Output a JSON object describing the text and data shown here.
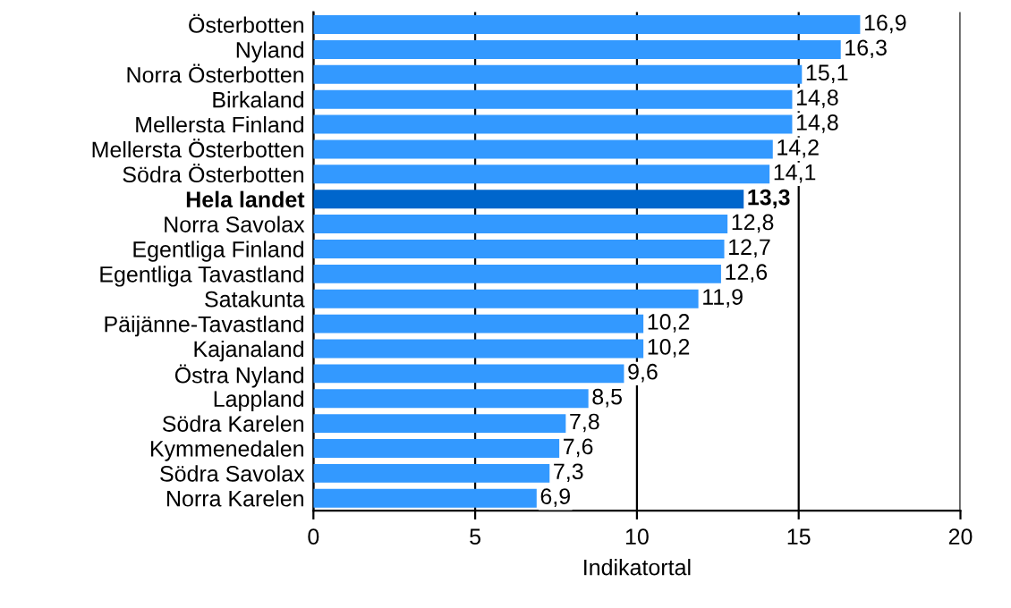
{
  "chart_data": {
    "type": "bar",
    "orientation": "horizontal",
    "xlabel": "Indikatortal",
    "categories": [
      "Österbotten",
      "Nyland",
      "Norra Österbotten",
      "Birkaland",
      "Mellersta Finland",
      "Mellersta Österbotten",
      "Södra Österbotten",
      "Hela landet",
      "Norra Savolax",
      "Egentliga Finland",
      "Egentliga Tavastland",
      "Satakunta",
      "Päijänne-Tavastland",
      "Kajanaland",
      "Östra Nyland",
      "Lappland",
      "Södra Karelen",
      "Kymmenedalen",
      "Södra Savolax",
      "Norra Karelen"
    ],
    "values": [
      16.9,
      16.3,
      15.1,
      14.8,
      14.8,
      14.2,
      14.1,
      13.3,
      12.8,
      12.7,
      12.6,
      11.9,
      10.2,
      10.2,
      9.6,
      8.5,
      7.8,
      7.6,
      7.3,
      6.9
    ],
    "value_labels": [
      "16,9",
      "16,3",
      "15,1",
      "14,8",
      "14,8",
      "14,2",
      "14,1",
      "13,3",
      "12,8",
      "12,7",
      "12,6",
      "11,9",
      "10,2",
      "10,2",
      "9,6",
      "8,5",
      "7,8",
      "7,6",
      "7,3",
      "6,9"
    ],
    "colors": [
      "#3399ff",
      "#3399ff",
      "#3399ff",
      "#3399ff",
      "#3399ff",
      "#3399ff",
      "#3399ff",
      "#0066cc",
      "#3399ff",
      "#3399ff",
      "#3399ff",
      "#3399ff",
      "#3399ff",
      "#3399ff",
      "#3399ff",
      "#3399ff",
      "#3399ff",
      "#3399ff",
      "#3399ff",
      "#3399ff"
    ],
    "xlim": [
      0,
      20
    ],
    "xticks": [
      0,
      5,
      10,
      15,
      20
    ],
    "grid": "x"
  }
}
